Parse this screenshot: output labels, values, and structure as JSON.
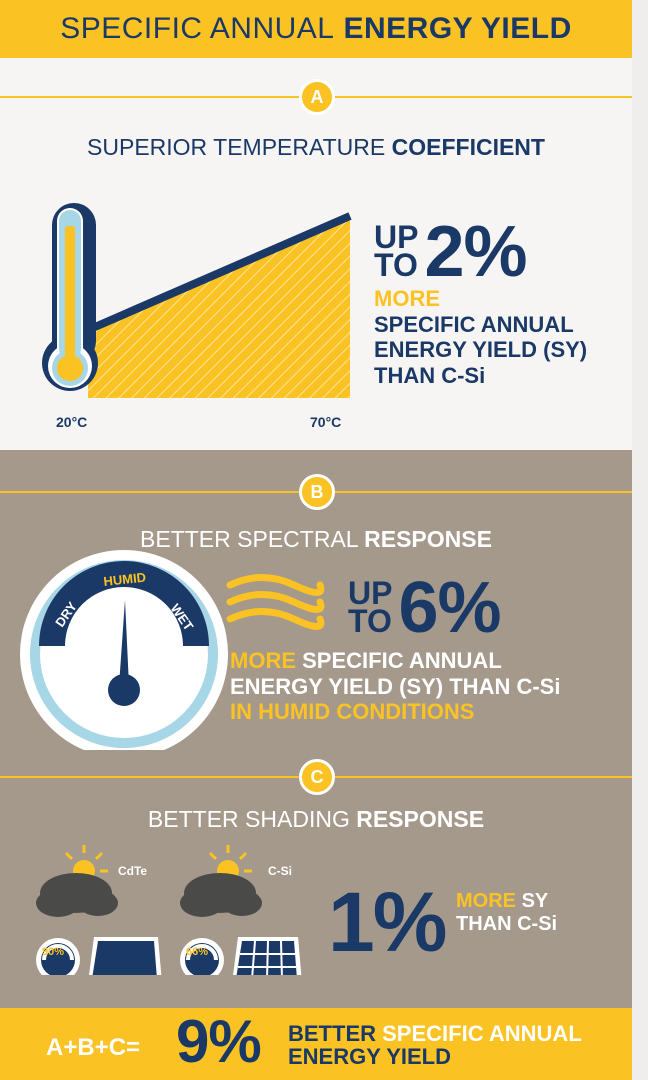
{
  "header": {
    "title_thin": "SPECIFIC ANNUAL",
    "title_bold": "ENERGY YIELD"
  },
  "section_a": {
    "badge": "A",
    "title_thin": "SUPERIOR TEMPERATURE",
    "title_bold": "COEFFICIENT",
    "up_line1": "UP",
    "up_line2": "TO",
    "value": "2%",
    "more": "MORE",
    "desc_line1": "SPECIFIC ANNUAL",
    "desc_line2": "ENERGY YIELD (SY)",
    "desc_line3": "THAN C-Si",
    "temp_low": "20°C",
    "temp_high": "70°C"
  },
  "section_b": {
    "badge": "B",
    "title_thin": "BETTER SPECTRAL",
    "title_bold": "RESPONSE",
    "gauge_dry": "DRY",
    "gauge_humid": "HUMID",
    "gauge_wet": "WET",
    "up_line1": "UP",
    "up_line2": "TO",
    "value": "6%",
    "more": "MORE",
    "desc_line1_rest": "SPECIFIC ANNUAL",
    "desc_line2": "ENERGY YIELD (SY) THAN C-Si",
    "desc_line3": "IN HUMID CONDITIONS"
  },
  "section_c": {
    "badge": "C",
    "title_thin": "BETTER SHADING",
    "title_bold": "RESPONSE",
    "panel1_label": "CdTe",
    "panel1_gauge": "90%",
    "panel2_label": "C-Si",
    "panel2_gauge": "66%",
    "value": "1%",
    "more": "MORE",
    "sy": "SY",
    "than": "THAN C-Si"
  },
  "footer": {
    "formula": "A+B+C=",
    "value": "9%",
    "better": "BETTER",
    "desc_line1_rest": "SPECIFIC ANNUAL",
    "desc_line2": "ENERGY YIELD"
  },
  "colors": {
    "navy": "#1b3966",
    "yellow": "#fbc223",
    "taupe": "#a5998c",
    "light": "#f6f5f3"
  }
}
